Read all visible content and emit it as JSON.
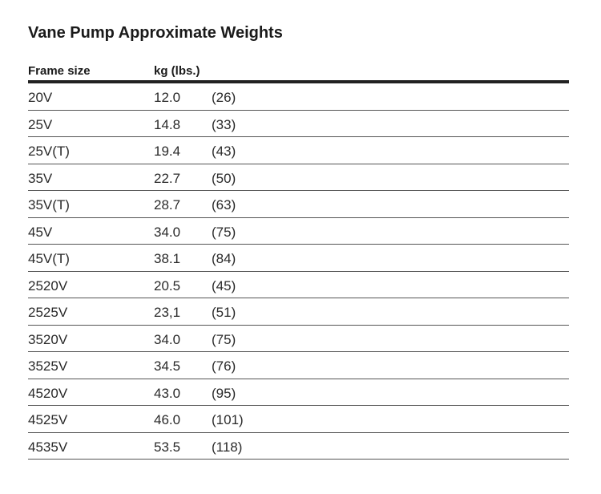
{
  "title": "Vane Pump Approximate Weights",
  "table": {
    "header": [
      "Frame size",
      "kg (lbs.)"
    ],
    "rows": [
      [
        "20V",
        "12.0",
        "(26)"
      ],
      [
        "25V",
        "14.8",
        "(33)"
      ],
      [
        "25V(T)",
        "19.4",
        "(43)"
      ],
      [
        "35V",
        "22.7",
        "(50)"
      ],
      [
        "35V(T)",
        "28.7",
        "(63)"
      ],
      [
        "45V",
        "34.0",
        "(75)"
      ],
      [
        "45V(T)",
        "38.1",
        "(84)"
      ],
      [
        "2520V",
        "20.5",
        "(45)"
      ],
      [
        "2525V",
        "23,1",
        "(51)"
      ],
      [
        "3520V",
        "34.0",
        "(75)"
      ],
      [
        "3525V",
        "34.5",
        "(76)"
      ],
      [
        "4520V",
        "43.0",
        "(95)"
      ],
      [
        "4525V",
        "46.0",
        "(101)"
      ],
      [
        "4535V",
        "53.5",
        "(118)"
      ]
    ]
  }
}
